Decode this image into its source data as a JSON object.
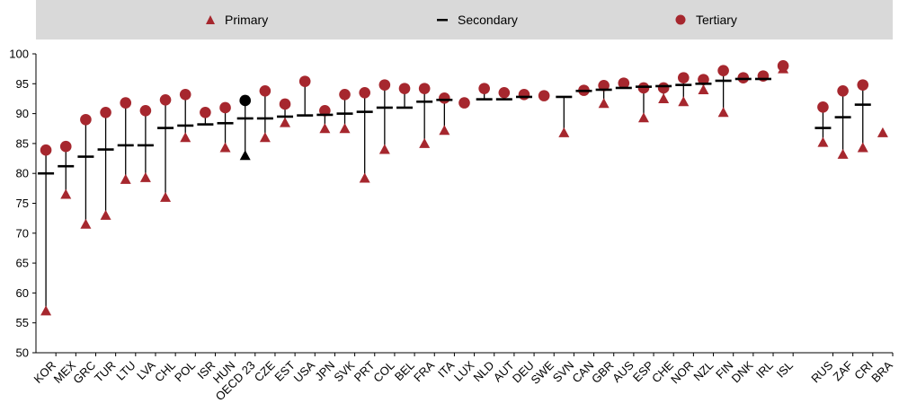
{
  "legend": {
    "primary": "Primary",
    "secondary": "Secondary",
    "tertiary": "Tertiary"
  },
  "colors": {
    "marker": "#a6272e",
    "oecd_marker": "#000000",
    "line": "#000000",
    "legend_bg": "#d9d9d9"
  },
  "chart_data": {
    "type": "scatter",
    "title": "",
    "xlabel": "",
    "ylabel": "",
    "ylim": [
      50,
      100
    ],
    "yticks": [
      50,
      55,
      60,
      65,
      70,
      75,
      80,
      85,
      90,
      95,
      100
    ],
    "grid": false,
    "legend_position": "top",
    "categories": [
      "KOR",
      "MEX",
      "GRC",
      "TUR",
      "LTU",
      "LVA",
      "CHL",
      "POL",
      "ISR",
      "HUN",
      "OECD 23",
      "CZE",
      "EST",
      "USA",
      "JPN",
      "SVK",
      "PRT",
      "COL",
      "BEL",
      "FRA",
      "ITA",
      "LUX",
      "NLD",
      "AUT",
      "DEU",
      "SWE",
      "SVN",
      "CAN",
      "GBR",
      "AUS",
      "ESP",
      "CHE",
      "NOR",
      "NZL",
      "FIN",
      "DNK",
      "IRL",
      "ISL",
      "",
      "RUS",
      "ZAF",
      "CRI",
      "BRA"
    ],
    "highlight": "OECD 23",
    "series": [
      {
        "name": "Primary",
        "marker": "triangle",
        "values": [
          57,
          76.5,
          71.5,
          73,
          79,
          79.3,
          76,
          86,
          null,
          84.3,
          83,
          86,
          88.5,
          null,
          87.5,
          87.5,
          79.2,
          84,
          null,
          85,
          87.2,
          null,
          null,
          null,
          null,
          null,
          86.8,
          null,
          91.7,
          null,
          89.3,
          92.5,
          92,
          94,
          90.2,
          null,
          null,
          97.5,
          null,
          85.2,
          83.2,
          84.3,
          86.8
        ]
      },
      {
        "name": "Secondary",
        "marker": "dash",
        "values": [
          80,
          81.2,
          82.8,
          84,
          84.7,
          84.7,
          87.6,
          88,
          88.2,
          88.4,
          89.2,
          89.2,
          89.5,
          89.7,
          89.8,
          90,
          90.3,
          91,
          91,
          92,
          92.3,
          null,
          92.4,
          92.4,
          92.8,
          null,
          92.8,
          93.8,
          94,
          94.3,
          94.5,
          94.6,
          94.8,
          95,
          95.5,
          95.8,
          95.8,
          null,
          null,
          87.6,
          89.4,
          91.5,
          null
        ]
      },
      {
        "name": "Tertiary",
        "marker": "circle",
        "values": [
          83.9,
          84.5,
          89,
          90.2,
          91.8,
          90.5,
          92.3,
          93.2,
          90.2,
          91,
          92.2,
          93.8,
          91.6,
          95.4,
          90.5,
          93.2,
          93.5,
          94.8,
          94.2,
          94.2,
          92.6,
          91.8,
          94.2,
          93.5,
          93.2,
          93,
          null,
          93.9,
          94.7,
          95.1,
          94.3,
          94.3,
          96,
          95.7,
          97.2,
          96,
          96.3,
          98,
          null,
          91.1,
          93.8,
          94.8,
          null
        ]
      }
    ]
  }
}
